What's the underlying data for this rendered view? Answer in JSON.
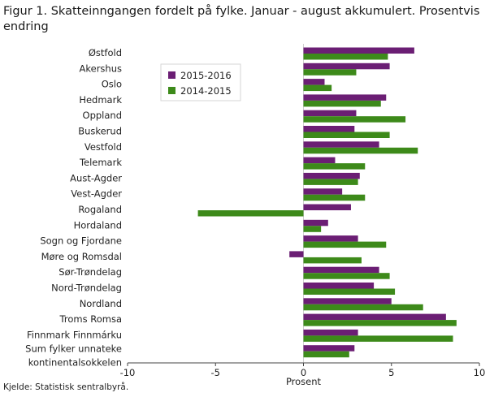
{
  "figure": {
    "title": "Figur 1. Skatteinngangen fordelt på fylke. Januar - august akkumulert. Prosentvis endring",
    "source": "Kjelde: Statistisk sentralbyrå."
  },
  "chart_data": {
    "type": "bar",
    "orientation": "horizontal",
    "title": "Figur 1. Skatteinngangen fordelt på fylke. Januar - august akkumulert. Prosentvis endring",
    "xlabel": "Prosent",
    "ylabel": "",
    "xlim": [
      -10,
      10
    ],
    "xticks": [
      -10,
      -5,
      0,
      5,
      10
    ],
    "grid": false,
    "legend_position": "top-left",
    "categories": [
      "Østfold",
      "Akershus",
      "Oslo",
      "Hedmark",
      "Oppland",
      "Buskerud",
      "Vestfold",
      "Telemark",
      "Aust-Agder",
      "Vest-Agder",
      "Rogaland",
      "Hordaland",
      "Sogn og Fjordane",
      "Møre og Romsdal",
      "Sør-Trøndelag",
      "Nord-Trøndelag",
      "Nordland",
      "Troms Romsa",
      "Finnmark Finnmárku",
      "Sum fylker unnateke kontinentalsokkelen"
    ],
    "series": [
      {
        "name": "2015-2016",
        "color": "#6b1e74",
        "values": [
          6.3,
          4.9,
          1.2,
          4.7,
          3.0,
          2.9,
          4.3,
          1.8,
          3.2,
          2.2,
          2.7,
          1.4,
          3.1,
          -0.8,
          4.3,
          4.0,
          5.0,
          8.1,
          3.1,
          2.9
        ]
      },
      {
        "name": "2014-2015",
        "color": "#3d8a1a",
        "values": [
          4.8,
          3.0,
          1.6,
          4.4,
          5.8,
          4.9,
          6.5,
          3.5,
          3.1,
          3.5,
          -6.0,
          1.0,
          4.7,
          3.3,
          4.9,
          5.2,
          6.8,
          8.7,
          8.5,
          2.6
        ]
      }
    ]
  }
}
